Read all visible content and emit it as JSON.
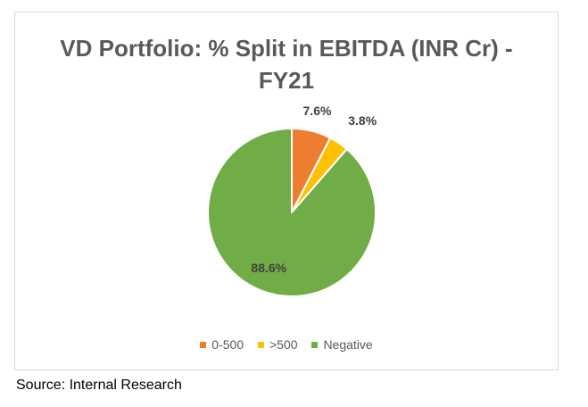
{
  "chart_data": {
    "type": "pie",
    "title": "VD Portfolio: % Split in EBITDA (INR Cr) - FY21",
    "title_lines": [
      "VD Portfolio: % Split in EBITDA (INR Cr) -",
      "FY21"
    ],
    "categories": [
      "0-500",
      ">500",
      "Negative"
    ],
    "values": [
      7.6,
      3.8,
      88.6
    ],
    "data_labels": [
      "7.6%",
      "3.8%",
      "88.6%"
    ],
    "colors": [
      "#ed7d31",
      "#ffc000",
      "#70ad47"
    ],
    "legend_position": "bottom"
  },
  "source": "Source: Internal Research"
}
